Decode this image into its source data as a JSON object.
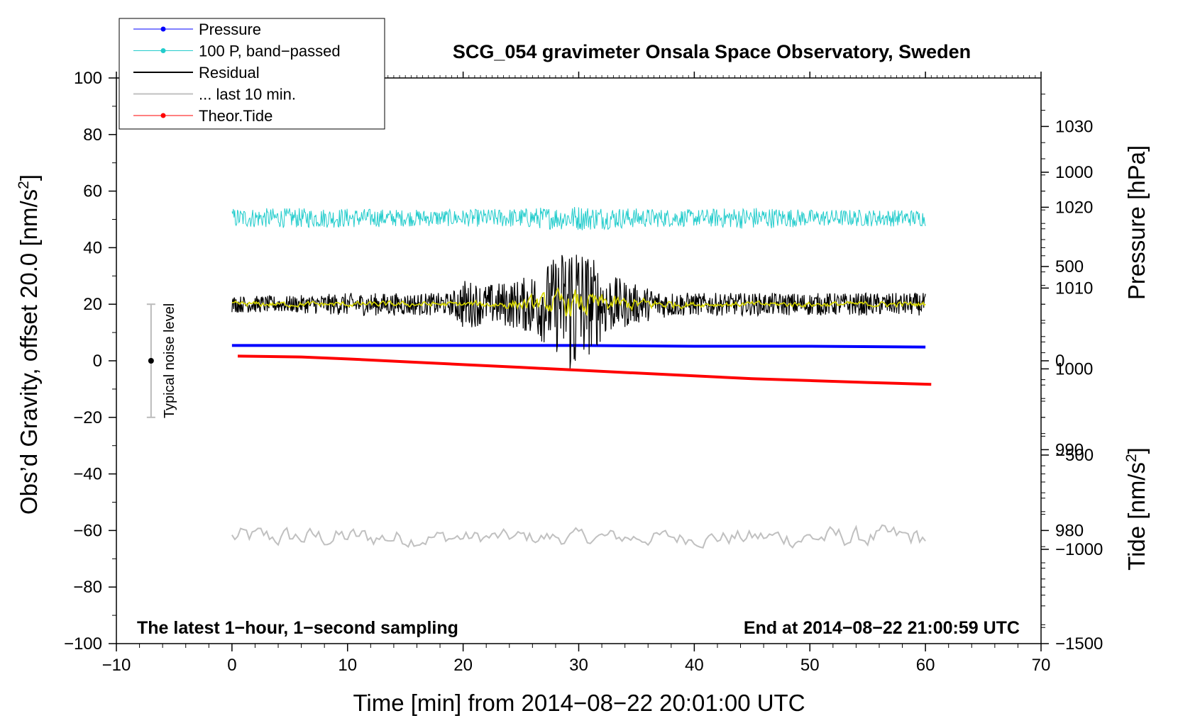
{
  "chart_data": {
    "type": "line",
    "title": "SCG_054 gravimeter Onsala Space Observatory, Sweden",
    "xlabel": "Time [min] from 2014−08−22 20:01:00 UTC",
    "ylabel_left_main": "Obs’d Gravity, offset 20.0 [nm/s",
    "ylabel_left_sup": "2",
    "ylabel_left_end": "]",
    "ylabel_right_top": "Pressure [hPa]",
    "ylabel_right_bottom_main": "Tide [nm/s",
    "ylabel_right_bottom_sup": "2",
    "ylabel_right_bottom_end": "]",
    "xlim": [
      -10,
      70
    ],
    "ylim_left": [
      -100,
      100
    ],
    "ylim_pressure": [
      966,
      1036
    ],
    "ylim_tide": [
      -1500,
      1500
    ],
    "x_ticks": [
      "−10",
      "0",
      "10",
      "20",
      "30",
      "40",
      "50",
      "60",
      "70"
    ],
    "x_tick_values": [
      -10,
      0,
      10,
      20,
      30,
      40,
      50,
      60,
      70
    ],
    "y_left_ticks": [
      "100",
      "80",
      "60",
      "40",
      "20",
      "0",
      "−20",
      "−40",
      "−60",
      "−80",
      "−100"
    ],
    "y_left_tick_values": [
      100,
      80,
      60,
      40,
      20,
      0,
      -20,
      -40,
      -60,
      -80,
      -100
    ],
    "pressure_ticks": [
      "1030",
      "1020",
      "1010",
      "1000",
      "990",
      "980"
    ],
    "pressure_tick_values": [
      1030,
      1020,
      1010,
      1000,
      990,
      980
    ],
    "tide_ticks": [
      "1000",
      "500",
      "0",
      "−500",
      "−1000",
      "−1500"
    ],
    "tide_tick_values": [
      1000,
      500,
      0,
      -500,
      -1000,
      -1500
    ],
    "legend": {
      "placement": "top-left",
      "entries": [
        {
          "label": "Pressure",
          "color": "#0000ff",
          "marker": true
        },
        {
          "label": "100 P, band−passed",
          "color": "#22cccc",
          "marker": true
        },
        {
          "label": "Residual",
          "color": "#000000",
          "marker": false
        },
        {
          "label": "... last 10 min.",
          "color": "#c0c0c0",
          "marker": false
        },
        {
          "label": "Theor.Tide",
          "color": "#ff0000",
          "marker": true
        }
      ]
    },
    "annotations": {
      "bottom_left": "The latest 1−hour, 1−second sampling",
      "bottom_right": "End at 2014−08−22 21:00:59 UTC",
      "noise_label": "Typical noise level"
    },
    "noise_bar": {
      "x": -7,
      "center": 0,
      "low": -20,
      "high": 20
    },
    "series": [
      {
        "name": "Pressure",
        "color": "#0000ff",
        "axis": "pressure",
        "x": [
          0,
          10,
          20,
          30,
          40,
          50,
          60
        ],
        "values": [
          1002.9,
          1002.9,
          1002.9,
          1002.9,
          1002.8,
          1002.8,
          1002.7
        ]
      },
      {
        "name": "100 P, band−passed",
        "color": "#22cccc",
        "axis": "left",
        "x_range": [
          0,
          60
        ],
        "center": 50.5,
        "amplitude_envelope": {
          "x": [
            0,
            5,
            10,
            15,
            20,
            25,
            30,
            35,
            40,
            45,
            50,
            55,
            60
          ],
          "amp": [
            3.5,
            3.5,
            3.5,
            3,
            3,
            3.5,
            4.5,
            3.5,
            3,
            4,
            3,
            3,
            3
          ]
        }
      },
      {
        "name": "Residual",
        "color": "#000000",
        "axis": "left",
        "x_range": [
          0,
          60
        ],
        "center": 20,
        "amplitude_envelope": {
          "x": [
            0,
            5,
            10,
            15,
            19,
            20,
            22,
            25,
            27,
            28,
            29,
            29.6,
            30,
            31,
            32,
            33,
            35,
            37,
            40,
            45,
            50,
            55,
            60
          ],
          "amp": [
            3,
            3,
            4,
            4,
            4,
            9,
            7,
            9,
            14,
            17,
            22,
            30,
            22,
            18,
            13,
            10,
            7,
            5,
            4,
            4,
            4,
            4,
            4
          ]
        }
      },
      {
        "name": "Residual (smoothed)",
        "color": "#d8d800",
        "axis": "left",
        "x_range": [
          0,
          60
        ],
        "center": 20,
        "amplitude_envelope": {
          "x": [
            0,
            20,
            25,
            29,
            30,
            33,
            40,
            60
          ],
          "amp": [
            1,
            1,
            2,
            5,
            5,
            3,
            1,
            1
          ]
        }
      },
      {
        "name": "... last 10 min.",
        "color": "#c0c0c0",
        "axis": "left",
        "x_range": [
          0,
          60
        ],
        "center": -62.5,
        "amplitude_envelope": {
          "x": [
            0,
            10,
            20,
            30,
            40,
            50,
            60
          ],
          "amp": [
            4,
            4,
            3,
            3,
            3,
            4,
            4
          ]
        }
      },
      {
        "name": "Theor.Tide",
        "color": "#ff0000",
        "axis": "tide",
        "x": [
          0.5,
          6,
          10,
          15,
          20,
          25,
          30,
          35,
          40,
          45,
          50,
          55,
          60.5
        ],
        "values": [
          25,
          20,
          10,
          -5,
          -20,
          -35,
          -50,
          -65,
          -80,
          -95,
          -105,
          -115,
          -125
        ]
      }
    ]
  }
}
